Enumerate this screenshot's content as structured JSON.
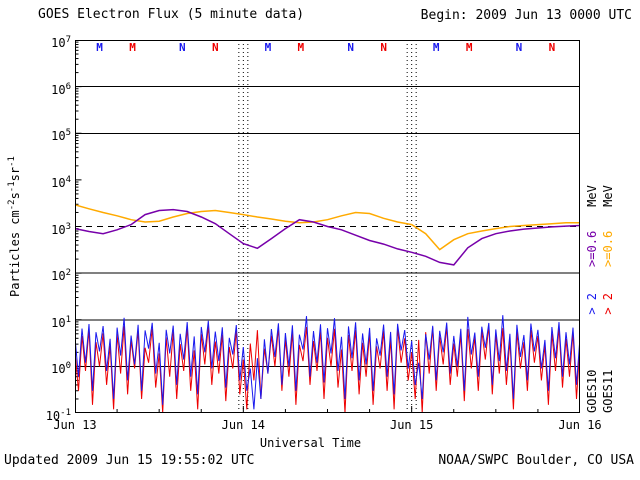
{
  "header": {
    "title": "GOES Electron Flux (5 minute data)",
    "begin": "Begin: 2009 Jun 13 0000 UTC"
  },
  "footer": {
    "updated": "Updated 2009 Jun 15 19:55:02 UTC",
    "credit": "NOAA/SWPC Boulder, CO USA"
  },
  "axis": {
    "xlabel": "Universal Time",
    "ylabel_parts": [
      [
        "t",
        "Particles cm"
      ],
      [
        "s",
        "-2"
      ],
      [
        "t",
        "s"
      ],
      [
        "s",
        "-1"
      ],
      [
        "t",
        "sr"
      ],
      [
        "s",
        "-1"
      ]
    ]
  },
  "markers": [
    {
      "label": "M",
      "hour": 3.6,
      "color": "#1a1aee"
    },
    {
      "label": "M",
      "hour": 8.3,
      "color": "#ee0000"
    },
    {
      "label": "N",
      "hour": 15.4,
      "color": "#1a1aee"
    },
    {
      "label": "N",
      "hour": 20.1,
      "color": "#ee0000"
    },
    {
      "label": "M",
      "hour": 27.6,
      "color": "#1a1aee"
    },
    {
      "label": "M",
      "hour": 32.3,
      "color": "#ee0000"
    },
    {
      "label": "N",
      "hour": 39.4,
      "color": "#1a1aee"
    },
    {
      "label": "N",
      "hour": 44.1,
      "color": "#ee0000"
    },
    {
      "label": "M",
      "hour": 51.6,
      "color": "#1a1aee"
    },
    {
      "label": "M",
      "hour": 56.3,
      "color": "#ee0000"
    },
    {
      "label": "N",
      "hour": 63.4,
      "color": "#1a1aee"
    },
    {
      "label": "N",
      "hour": 68.1,
      "color": "#ee0000"
    }
  ],
  "legend": {
    "columns": [
      {
        "satellite": "GOES10",
        "labels": {
          "e2": "> 2",
          "e06": ">=0.6",
          "unit": "MeV"
        },
        "colors": {
          "e2": "#1a1aee",
          "e06": "#7700aa",
          "unit": "#000000",
          "satellite": "#000000"
        }
      },
      {
        "satellite": "GOES11",
        "labels": {
          "e2": "> 2",
          "e06": ">=0.6",
          "unit": "MeV"
        },
        "colors": {
          "e2": "#ee0000",
          "e06": "#ffaa00",
          "unit": "#000000",
          "satellite": "#000000"
        }
      }
    ]
  },
  "chart_data": {
    "type": "line",
    "title": "GOES Electron Flux (5 minute data)",
    "x_label": "Universal Time",
    "x_start_label": "Begin: 2009 Jun 13 0000 UTC",
    "x_range_hours": [
      0,
      72
    ],
    "x_ticks": [
      {
        "label": "Jun 13",
        "hour": 0
      },
      {
        "label": "Jun 14",
        "hour": 24
      },
      {
        "label": "Jun 15",
        "hour": 48
      },
      {
        "label": "Jun 16",
        "hour": 72
      }
    ],
    "y_scale": "log",
    "ylim": [
      0.1,
      10000000
    ],
    "y_tick_exponents": [
      7,
      6,
      5,
      4,
      3,
      2,
      1,
      0,
      -1
    ],
    "gridlines": {
      "solid": [
        1000000,
        100000,
        100,
        10,
        1
      ],
      "dashed": [
        1000
      ],
      "vertical_dotted_hours": [
        24,
        48
      ]
    },
    "series": [
      {
        "name": "GOES10 electrons >=0.6 MeV",
        "color": "#7700aa",
        "x_step_hours": 2,
        "values": [
          900,
          780,
          700,
          850,
          1100,
          1800,
          2200,
          2300,
          2100,
          1600,
          1150,
          700,
          430,
          340,
          550,
          900,
          1400,
          1250,
          1000,
          850,
          650,
          500,
          420,
          330,
          280,
          230,
          170,
          150,
          350,
          550,
          700,
          800,
          880,
          930,
          980,
          1020,
          1050
        ]
      },
      {
        "name": "GOES11 electrons >=0.6 MeV",
        "color": "#ffaa00",
        "x_step_hours": 2,
        "values": [
          2900,
          2400,
          2000,
          1700,
          1400,
          1250,
          1300,
          1600,
          1900,
          2100,
          2200,
          2000,
          1800,
          1600,
          1450,
          1300,
          1200,
          1250,
          1400,
          1700,
          2000,
          1900,
          1500,
          1250,
          1100,
          700,
          320,
          520,
          700,
          800,
          900,
          1000,
          1050,
          1100,
          1150,
          1200,
          1200
        ]
      },
      {
        "name": "GOES10 electrons >2 MeV",
        "color": "#1a1aee",
        "x_step_hours": 0.5,
        "values": [
          4.2,
          0.6,
          6.5,
          1.2,
          8.1,
          0.3,
          5.4,
          2.1,
          7.3,
          0.8,
          3.9,
          0.2,
          6.8,
          1.7,
          11,
          0.5,
          4.6,
          1.1,
          7.8,
          0.3,
          5.9,
          2.4,
          8.6,
          0.7,
          3.2,
          0.15,
          6.1,
          1.9,
          7.5,
          0.4,
          5,
          1.4,
          8.9,
          0.6,
          4.4,
          0.25,
          7,
          2,
          9.5,
          0.9,
          5.6,
          1.3,
          6.9,
          0.35,
          4.1,
          1.8,
          7.7,
          0.5,
          2.6,
          0.3,
          0.9,
          0.12,
          1.5,
          0.2,
          3.8,
          0.7,
          6.3,
          1.6,
          8.4,
          0.4,
          5.2,
          1,
          7.6,
          0.3,
          4.8,
          2.3,
          12,
          0.6,
          5.7,
          1.2,
          8,
          0.45,
          6.6,
          1.9,
          10.8,
          0.8,
          4.3,
          0.2,
          7.2,
          1.5,
          8.8,
          0.5,
          5.1,
          1.1,
          6.7,
          0.3,
          4,
          1.7,
          7.9,
          0.6,
          5.5,
          0.25,
          8.2,
          2.2,
          6,
          0.9,
          3.5,
          0.4,
          1.2,
          0.2,
          4.9,
          1.4,
          7.4,
          0.5,
          5.8,
          2,
          8.7,
          0.7,
          4.5,
          1,
          6.4,
          0.3,
          11.5,
          1.8,
          5.3,
          0.6,
          7.1,
          2.5,
          8.5,
          0.4,
          6.2,
          1.3,
          12.5,
          0.8,
          5,
          0.2,
          7.8,
          1.6,
          4.7,
          0.5,
          8.3,
          2.1,
          6.1,
          0.9,
          3.7,
          0.3,
          7,
          1.5,
          8.9,
          0.6,
          5.4,
          1.1,
          6.8,
          0.4,
          4.2
        ]
      },
      {
        "name": "GOES11 electrons >2 MeV",
        "color": "#ee0000",
        "x_step_hours": 0.5,
        "values": [
          2.1,
          0.3,
          4.5,
          0.8,
          6.2,
          0.15,
          3.3,
          1,
          5.1,
          0.4,
          2.8,
          0.12,
          4.9,
          0.7,
          7.3,
          0.25,
          3.6,
          0.9,
          5.8,
          0.2,
          2.5,
          1.2,
          6.5,
          0.35,
          1.9,
          0.1,
          4.2,
          0.6,
          5.5,
          0.2,
          3,
          0.8,
          6.8,
          0.3,
          2.2,
          0.12,
          5,
          1.1,
          7.6,
          0.4,
          3.4,
          0.7,
          4.8,
          0.18,
          2.6,
          0.9,
          5.9,
          0.25,
          1.4,
          0.12,
          3.1,
          0.5,
          6,
          0.2,
          2.4,
          0.7,
          4.6,
          1,
          6.7,
          0.3,
          3.8,
          0.6,
          5.3,
          0.15,
          2.9,
          1.3,
          7,
          0.4,
          3.5,
          0.8,
          5.6,
          0.2,
          4.1,
          1,
          6.4,
          0.35,
          2.3,
          0.1,
          4.7,
          0.8,
          6.1,
          0.25,
          3.2,
          0.6,
          5.2,
          0.15,
          2.7,
          0.9,
          5.7,
          0.3,
          3.9,
          0.12,
          6.6,
          1.2,
          4,
          0.5,
          2,
          0.2,
          3.7,
          0.1,
          5.4,
          0.7,
          6.9,
          0.3,
          4.4,
          1.1,
          7.2,
          0.4,
          3.1,
          0.6,
          5,
          0.18,
          6.3,
          0.9,
          4.3,
          0.3,
          5.8,
          1.4,
          7.4,
          0.25,
          4.9,
          0.7,
          6.6,
          0.4,
          3.6,
          0.12,
          5.5,
          0.9,
          3.3,
          0.3,
          6,
          1.2,
          4.5,
          0.5,
          2.8,
          0.15,
          5.1,
          0.8,
          6.8,
          0.35,
          3.9,
          0.6,
          5.2,
          0.2,
          3
        ]
      }
    ]
  }
}
